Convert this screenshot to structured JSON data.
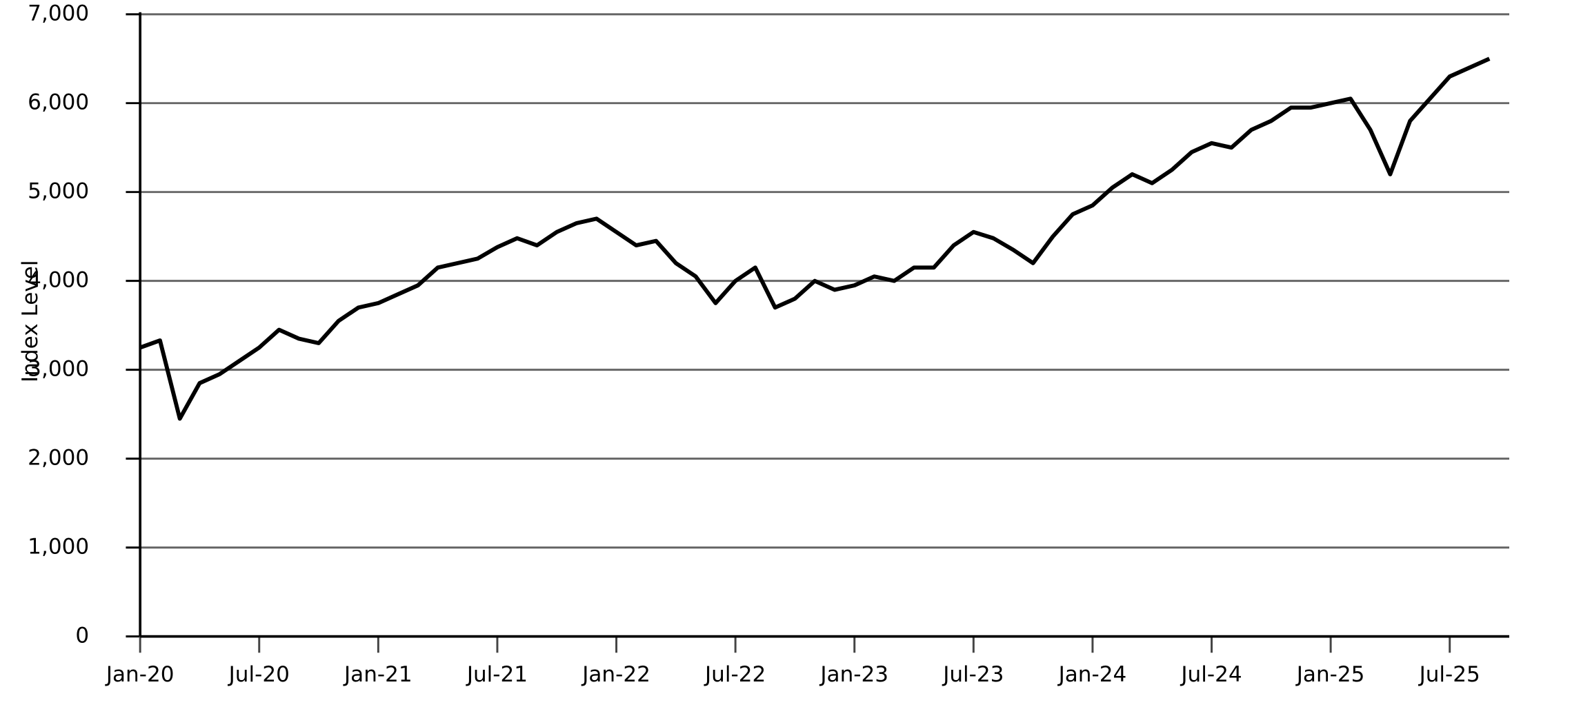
{
  "chart_data": {
    "type": "line",
    "y_label": "Index Level",
    "x": [
      "2020-01",
      "2020-02",
      "2020-03",
      "2020-04",
      "2020-05",
      "2020-06",
      "2020-07",
      "2020-08",
      "2020-09",
      "2020-10",
      "2020-11",
      "2020-12",
      "2021-01",
      "2021-02",
      "2021-03",
      "2021-04",
      "2021-05",
      "2021-06",
      "2021-07",
      "2021-08",
      "2021-09",
      "2021-10",
      "2021-11",
      "2021-12",
      "2022-01",
      "2022-02",
      "2022-03",
      "2022-04",
      "2022-05",
      "2022-06",
      "2022-07",
      "2022-08",
      "2022-09",
      "2022-10",
      "2022-11",
      "2022-12",
      "2023-01",
      "2023-02",
      "2023-03",
      "2023-04",
      "2023-05",
      "2023-06",
      "2023-07",
      "2023-08",
      "2023-09",
      "2023-10",
      "2023-11",
      "2023-12",
      "2024-01",
      "2024-02",
      "2024-03",
      "2024-04",
      "2024-05",
      "2024-06",
      "2024-07",
      "2024-08",
      "2024-09",
      "2024-10",
      "2024-11",
      "2024-12",
      "2025-01",
      "2025-02",
      "2025-03",
      "2025-04",
      "2025-05",
      "2025-06",
      "2025-07",
      "2025-08",
      "2025-09"
    ],
    "series": [
      {
        "name": "Index Level",
        "color": "#000000",
        "values": [
          3250,
          3330,
          2450,
          2850,
          2950,
          3100,
          3250,
          3450,
          3350,
          3300,
          3550,
          3700,
          3750,
          3850,
          3950,
          4150,
          4200,
          4250,
          4380,
          4480,
          4400,
          4550,
          4650,
          4700,
          4550,
          4400,
          4450,
          4200,
          4050,
          3750,
          4000,
          4150,
          3700,
          3800,
          4000,
          3900,
          3950,
          4050,
          4000,
          4150,
          4150,
          4400,
          4550,
          4480,
          4350,
          4200,
          4500,
          4750,
          4850,
          5050,
          5200,
          5100,
          5250,
          5450,
          5550,
          5500,
          5700,
          5800,
          5950,
          5950,
          6000,
          6050,
          5700,
          5200,
          5800,
          6050,
          6300,
          6400,
          6500
        ]
      }
    ],
    "xlim": [
      "2020-01",
      "2025-10"
    ],
    "xticks": [
      {
        "value": "2020-01",
        "label": "Jan-20"
      },
      {
        "value": "2020-07",
        "label": "Jul-20"
      },
      {
        "value": "2021-01",
        "label": "Jan-21"
      },
      {
        "value": "2021-07",
        "label": "Jul-21"
      },
      {
        "value": "2022-01",
        "label": "Jan-22"
      },
      {
        "value": "2022-07",
        "label": "Jul-22"
      },
      {
        "value": "2023-01",
        "label": "Jan-23"
      },
      {
        "value": "2023-07",
        "label": "Jul-23"
      },
      {
        "value": "2024-01",
        "label": "Jan-24"
      },
      {
        "value": "2024-07",
        "label": "Jul-24"
      },
      {
        "value": "2025-01",
        "label": "Jan-25"
      },
      {
        "value": "2025-07",
        "label": "Jul-25"
      }
    ],
    "ylim": [
      0,
      7000
    ],
    "yticks": [
      0,
      {
        "value": 1000,
        "label": "1,000"
      },
      {
        "value": 2000,
        "label": "2,000"
      },
      {
        "value": 3000,
        "label": "3,000"
      },
      {
        "value": 4000,
        "label": "4,000"
      },
      {
        "value": 5000,
        "label": "5,000"
      },
      {
        "value": 6000,
        "label": "6,000"
      },
      {
        "value": 7000,
        "label": "7,000"
      }
    ],
    "grid": true
  }
}
